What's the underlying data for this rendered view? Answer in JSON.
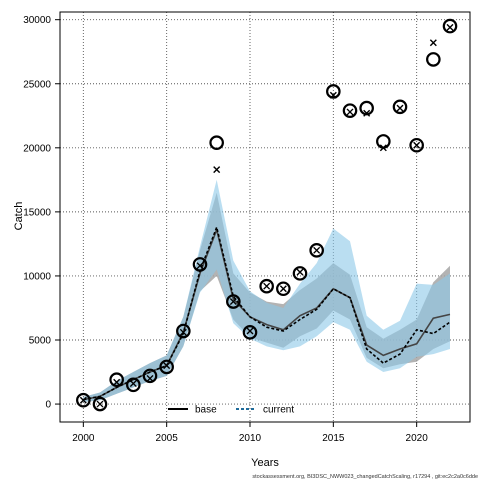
{
  "chart_data": {
    "type": "line",
    "xlabel": "Years",
    "ylabel": "Catch",
    "xlim": [
      1998.6,
      2023.2
    ],
    "ylim": [
      -1400,
      30600
    ],
    "x_ticks": [
      2000,
      2005,
      2010,
      2015,
      2020
    ],
    "y_ticks": [
      0,
      5000,
      10000,
      15000,
      20000,
      25000,
      30000
    ],
    "grid": true,
    "legend_position": "bottom-center",
    "footer": "stockassessment.org, BI3DSC_NWW023_changedCatchScaling, r17294 , git:ec2c2a0c6dde",
    "x": [
      2000,
      2001,
      2002,
      2003,
      2004,
      2005,
      2006,
      2007,
      2008,
      2009,
      2010,
      2011,
      2012,
      2013,
      2014,
      2015,
      2016,
      2017,
      2018,
      2019,
      2020,
      2021,
      2022
    ],
    "observed": [
      300,
      0,
      1900,
      1500,
      2200,
      2900,
      5700,
      10900,
      20400,
      8000,
      5600,
      9200,
      9000,
      10200,
      12000,
      24400,
      22900,
      23100,
      20500,
      23200,
      20200,
      26900,
      29500
    ],
    "predicted": [
      300,
      0,
      1700,
      1600,
      2000,
      3000,
      5600,
      10800,
      18300,
      8000,
      5700,
      9200,
      9000,
      10300,
      12000,
      24100,
      22800,
      22700,
      20000,
      23100,
      20200,
      28200,
      29400
    ],
    "series": [
      {
        "name": "base",
        "color": "#000000",
        "band_color": "#a6a6a6",
        "estimate": [
          350,
          600,
          1300,
          1900,
          2500,
          3000,
          5600,
          10200,
          13600,
          8200,
          6800,
          6200,
          5800,
          6900,
          7500,
          9000,
          8300,
          4600,
          3800,
          4300,
          4700,
          6700,
          7000
        ],
        "lower": [
          150,
          300,
          800,
          1300,
          1800,
          2200,
          4500,
          8800,
          10000,
          6600,
          5200,
          4800,
          4400,
          5300,
          5900,
          7300,
          6600,
          3600,
          2800,
          3100,
          3300,
          4300,
          4900
        ],
        "upper": [
          550,
          900,
          1800,
          2500,
          3200,
          3800,
          6800,
          12000,
          16500,
          10200,
          8700,
          8000,
          7800,
          8900,
          9800,
          11000,
          10100,
          6000,
          5100,
          5800,
          6600,
          9500,
          10800
        ]
      },
      {
        "name": "current",
        "color": "#1f6b9a",
        "band_color": "#8cc8e8",
        "estimate": [
          350,
          600,
          1300,
          1900,
          2500,
          3000,
          5500,
          10400,
          13800,
          8400,
          6800,
          6000,
          5700,
          6600,
          7400,
          9000,
          8300,
          4300,
          3200,
          3900,
          5800,
          5500,
          6400
        ],
        "lower": [
          150,
          300,
          800,
          1300,
          1800,
          2200,
          4500,
          8700,
          10500,
          6300,
          5100,
          4500,
          4200,
          4500,
          5300,
          6400,
          5800,
          3300,
          2500,
          2800,
          3700,
          3900,
          4300
        ],
        "upper": [
          550,
          900,
          1800,
          2500,
          3200,
          3800,
          6800,
          12300,
          17500,
          11200,
          8800,
          7900,
          7500,
          9400,
          11000,
          13700,
          12700,
          6900,
          5800,
          6500,
          9400,
          9300,
          10200
        ]
      }
    ]
  }
}
